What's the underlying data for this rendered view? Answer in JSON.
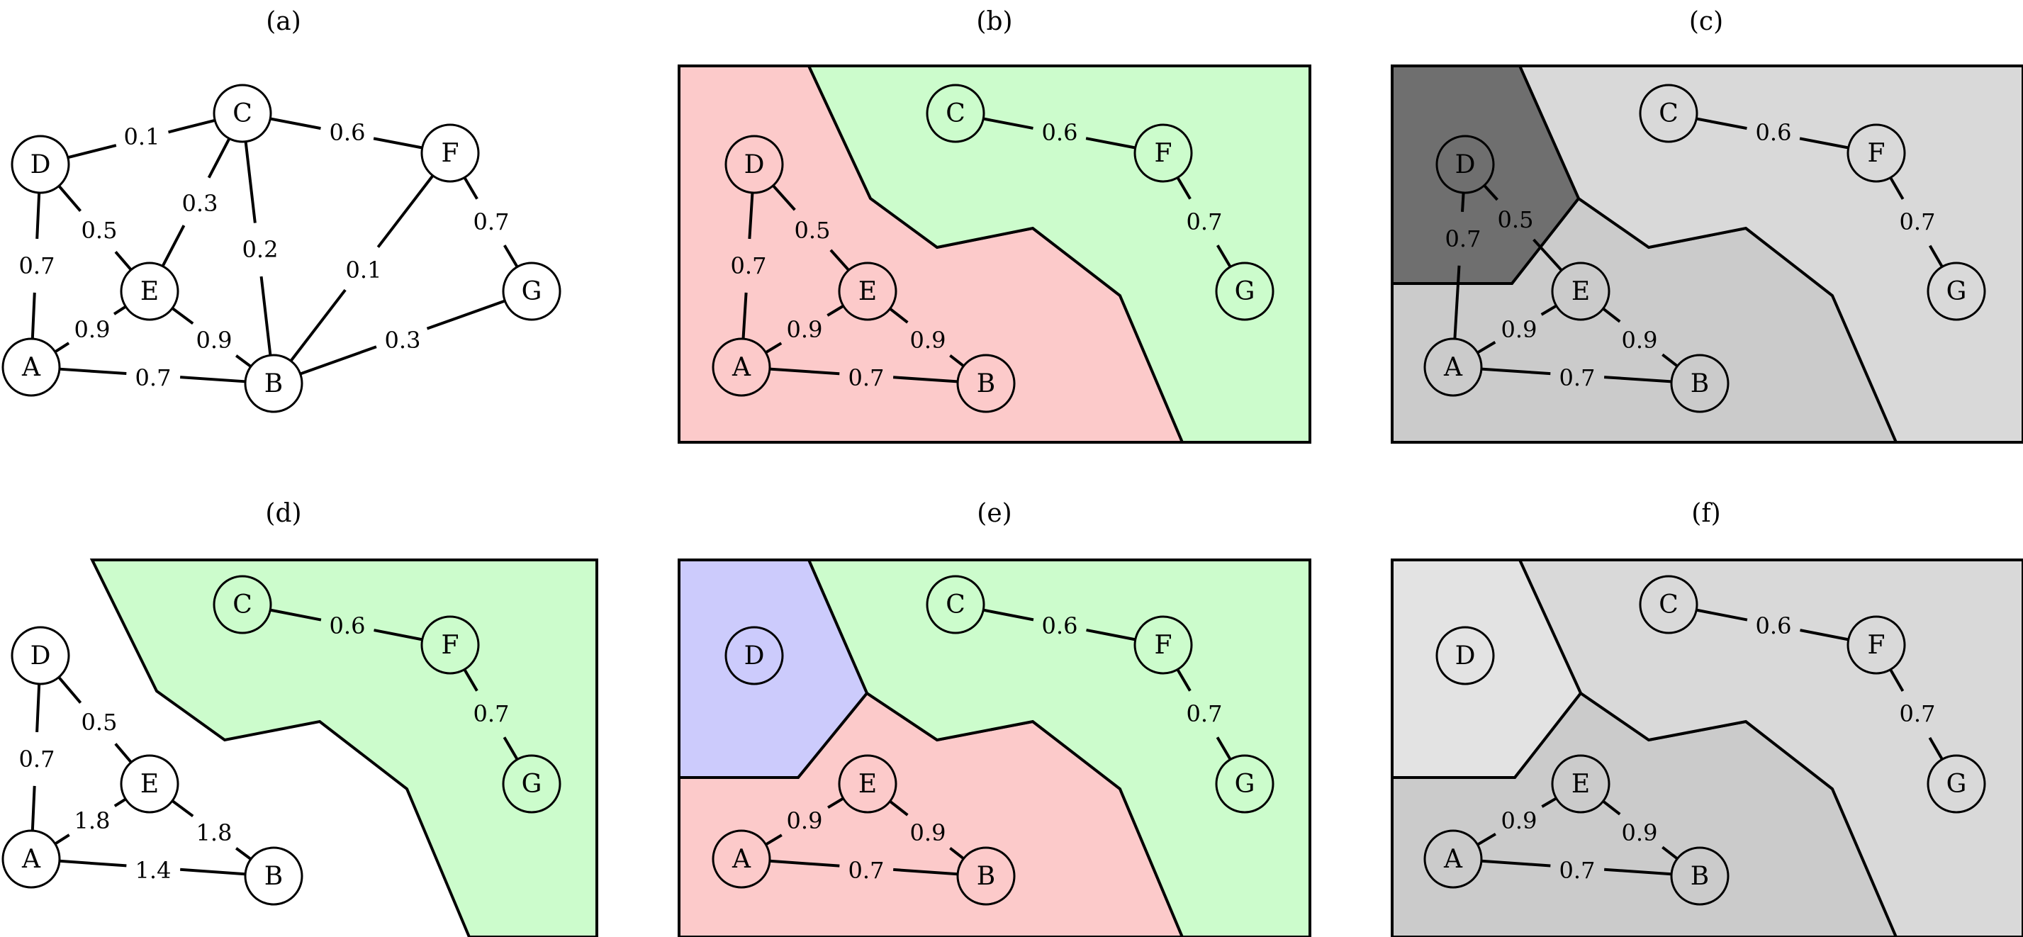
{
  "colors": {
    "red": "#fccaca",
    "green": "#ccfccc",
    "blue": "#cccbfc",
    "gray_dark": "#6f6f6f",
    "gray_mid": "#cbcbcb",
    "gray_light": "#d9d9d9",
    "gray_lightest": "#e3e3e3",
    "white": "#ffffff"
  },
  "panels": [
    {
      "id": "a",
      "title": "(a)",
      "nodes": [
        "A",
        "B",
        "C",
        "D",
        "E",
        "F",
        "G"
      ],
      "edges": [
        {
          "from": "D",
          "to": "C",
          "label": "0.1"
        },
        {
          "from": "C",
          "to": "F",
          "label": "0.6"
        },
        {
          "from": "C",
          "to": "E",
          "label": "0.3"
        },
        {
          "from": "C",
          "to": "B",
          "label": "0.2"
        },
        {
          "from": "D",
          "to": "E",
          "label": "0.5"
        },
        {
          "from": "D",
          "to": "A",
          "label": "0.7"
        },
        {
          "from": "F",
          "to": "G",
          "label": "0.7"
        },
        {
          "from": "F",
          "to": "B",
          "label": "0.1"
        },
        {
          "from": "E",
          "to": "A",
          "label": "0.9"
        },
        {
          "from": "E",
          "to": "B",
          "label": "0.9"
        },
        {
          "from": "A",
          "to": "B",
          "label": "0.7"
        },
        {
          "from": "B",
          "to": "G",
          "label": "0.3"
        }
      ]
    },
    {
      "id": "b",
      "title": "(b)",
      "nodes": [
        "A",
        "B",
        "C",
        "D",
        "E",
        "F",
        "G"
      ],
      "edges": [
        {
          "from": "C",
          "to": "F",
          "label": "0.6"
        },
        {
          "from": "F",
          "to": "G",
          "label": "0.7"
        },
        {
          "from": "D",
          "to": "E",
          "label": "0.5"
        },
        {
          "from": "D",
          "to": "A",
          "label": "0.7"
        },
        {
          "from": "E",
          "to": "A",
          "label": "0.9"
        },
        {
          "from": "E",
          "to": "B",
          "label": "0.9"
        },
        {
          "from": "A",
          "to": "B",
          "label": "0.7"
        }
      ]
    },
    {
      "id": "c",
      "title": "(c)",
      "nodes": [
        "A",
        "B",
        "C",
        "D",
        "E",
        "F",
        "G"
      ],
      "edges": [
        {
          "from": "C",
          "to": "F",
          "label": "0.6"
        },
        {
          "from": "F",
          "to": "G",
          "label": "0.7"
        },
        {
          "from": "D",
          "to": "E",
          "label": "0.5"
        },
        {
          "from": "D",
          "to": "A",
          "label": "0.7"
        },
        {
          "from": "E",
          "to": "A",
          "label": "0.9"
        },
        {
          "from": "E",
          "to": "B",
          "label": "0.9"
        },
        {
          "from": "A",
          "to": "B",
          "label": "0.7"
        }
      ]
    },
    {
      "id": "d",
      "title": "(d)",
      "nodes": [
        "A",
        "B",
        "C",
        "D",
        "E",
        "F",
        "G"
      ],
      "edges": [
        {
          "from": "C",
          "to": "F",
          "label": "0.6"
        },
        {
          "from": "F",
          "to": "G",
          "label": "0.7"
        },
        {
          "from": "D",
          "to": "E",
          "label": "0.5"
        },
        {
          "from": "D",
          "to": "A",
          "label": "0.7"
        },
        {
          "from": "E",
          "to": "A",
          "label": "1.8"
        },
        {
          "from": "E",
          "to": "B",
          "label": "1.8"
        },
        {
          "from": "A",
          "to": "B",
          "label": "1.4"
        }
      ]
    },
    {
      "id": "e",
      "title": "(e)",
      "nodes": [
        "A",
        "B",
        "C",
        "D",
        "E",
        "F",
        "G"
      ],
      "edges": [
        {
          "from": "C",
          "to": "F",
          "label": "0.6"
        },
        {
          "from": "F",
          "to": "G",
          "label": "0.7"
        },
        {
          "from": "E",
          "to": "A",
          "label": "0.9"
        },
        {
          "from": "E",
          "to": "B",
          "label": "0.9"
        },
        {
          "from": "A",
          "to": "B",
          "label": "0.7"
        }
      ]
    },
    {
      "id": "f",
      "title": "(f)",
      "nodes": [
        "A",
        "B",
        "C",
        "D",
        "E",
        "F",
        "G"
      ],
      "edges": [
        {
          "from": "C",
          "to": "F",
          "label": "0.6"
        },
        {
          "from": "F",
          "to": "G",
          "label": "0.7"
        },
        {
          "from": "E",
          "to": "A",
          "label": "0.9"
        },
        {
          "from": "E",
          "to": "B",
          "label": "0.9"
        },
        {
          "from": "A",
          "to": "B",
          "label": "0.7"
        }
      ]
    }
  ]
}
